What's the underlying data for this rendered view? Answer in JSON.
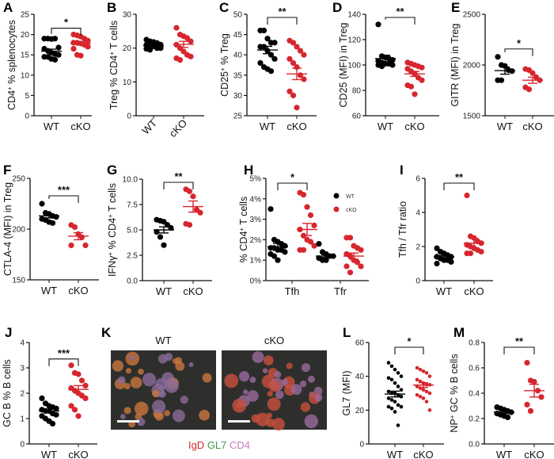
{
  "colors": {
    "WT": "#000000",
    "cKO": "#d7262e"
  },
  "chart_data": [
    {
      "panel": "A",
      "type": "scatter",
      "ylabel": [
        {
          "t": "CD4"
        },
        {
          "t": "+",
          "sup": true
        },
        {
          "t": " % splenocytes"
        }
      ],
      "ylim": [
        0,
        25
      ],
      "yticks": [
        0,
        5,
        10,
        15,
        20,
        25
      ],
      "categories": [
        "WT",
        "cKO"
      ],
      "series": [
        {
          "name": "WT",
          "x": "WT",
          "values": [
            19,
            19,
            18.9,
            19,
            16.8,
            16.5,
            16,
            15.5,
            15.2,
            15,
            14.5,
            14.5,
            14,
            13.8
          ],
          "mean": 15.9,
          "sem": 0.5
        },
        {
          "name": "cKO",
          "x": "cKO",
          "values": [
            20,
            19.8,
            19.5,
            19,
            18.5,
            18,
            18,
            17.8,
            17.5,
            17,
            16.5,
            15,
            14.8
          ],
          "mean": 17.8,
          "sem": 0.4
        }
      ],
      "significance": [
        {
          "from": "WT",
          "to": "cKO",
          "label": "*"
        }
      ]
    },
    {
      "panel": "B",
      "type": "scatter",
      "ylabel": [
        {
          "t": "Treg % CD4"
        },
        {
          "t": "+",
          "sup": true
        },
        {
          "t": " T cells"
        }
      ],
      "ylim": [
        0,
        30
      ],
      "yticks": [
        0,
        10,
        20,
        30
      ],
      "rotate_xticks": true,
      "categories": [
        "WT",
        "cKO"
      ],
      "series": [
        {
          "name": "WT",
          "x": "WT",
          "values": [
            22.5,
            22,
            21.8,
            21.5,
            21,
            21,
            20.5,
            20.5,
            20,
            20,
            19.8,
            19.5
          ],
          "mean": 20.6,
          "sem": 0.3
        },
        {
          "name": "cKO",
          "x": "cKO",
          "values": [
            26,
            24,
            23.5,
            23,
            22,
            21,
            20,
            19,
            18,
            17.5,
            17,
            16.5
          ],
          "mean": 21.1,
          "sem": 0.9
        }
      ],
      "significance": []
    },
    {
      "panel": "C",
      "type": "scatter",
      "ylabel": [
        {
          "t": "CD25"
        },
        {
          "t": "+",
          "sup": true
        },
        {
          "t": " % Treg"
        }
      ],
      "ylim": [
        25,
        50
      ],
      "yticks": [
        25,
        30,
        35,
        40,
        45,
        50
      ],
      "categories": [
        "WT",
        "cKO"
      ],
      "series": [
        {
          "name": "WT",
          "x": "WT",
          "values": [
            46,
            46,
            44,
            43,
            43,
            42,
            42,
            41,
            40,
            39,
            38,
            37,
            36.5,
            36
          ],
          "mean": 41.2,
          "sem": 0.9
        },
        {
          "name": "cKO",
          "x": "cKO",
          "values": [
            43.5,
            43,
            42,
            41,
            40,
            39,
            38,
            37,
            35,
            34,
            31,
            30,
            27
          ],
          "mean": 35.3,
          "sem": 1.4
        }
      ],
      "significance": [
        {
          "from": "WT",
          "to": "cKO",
          "label": "**"
        }
      ]
    },
    {
      "panel": "D",
      "type": "scatter",
      "ylabel": [
        {
          "t": "CD25 (MFI) in Treg"
        }
      ],
      "ylim": [
        60,
        140
      ],
      "yticks": [
        60,
        80,
        100,
        120,
        140
      ],
      "categories": [
        "WT",
        "cKO"
      ],
      "series": [
        {
          "name": "WT",
          "x": "WT",
          "values": [
            132,
            107,
            106,
            105,
            104,
            103,
            102,
            101,
            101,
            100,
            100,
            99
          ],
          "mean": 105,
          "sem": 2.7
        },
        {
          "name": "cKO",
          "x": "cKO",
          "values": [
            102,
            101,
            100,
            99,
            98,
            97,
            95,
            93,
            90,
            88,
            84,
            83,
            77
          ],
          "mean": 93,
          "sem": 2
        }
      ],
      "significance": [
        {
          "from": "WT",
          "to": "cKO",
          "label": "**"
        }
      ]
    },
    {
      "panel": "E",
      "type": "scatter",
      "ylabel": [
        {
          "t": "GITR (MFI) in Treg"
        }
      ],
      "ylim": [
        1500,
        2500
      ],
      "yticks": [
        1500,
        2000,
        2500
      ],
      "categories": [
        "WT",
        "cKO"
      ],
      "series": [
        {
          "name": "WT",
          "x": "WT",
          "values": [
            2080,
            2000,
            1990,
            1950,
            1940,
            1850,
            1850
          ],
          "mean": 1945,
          "sem": 35
        },
        {
          "name": "cKO",
          "x": "cKO",
          "values": [
            1960,
            1950,
            1920,
            1880,
            1850,
            1780,
            1760
          ],
          "mean": 1850,
          "sem": 30
        }
      ],
      "significance": [
        {
          "from": "WT",
          "to": "cKO",
          "label": "*"
        }
      ]
    },
    {
      "panel": "F",
      "type": "scatter",
      "ylabel": [
        {
          "t": "CTLA-4 (MFI) in Treg"
        }
      ],
      "ylim": [
        150,
        250
      ],
      "yticks": [
        150,
        200,
        250
      ],
      "categories": [
        "WT",
        "cKO"
      ],
      "series": [
        {
          "name": "WT",
          "x": "WT",
          "values": [
            225,
            216,
            215,
            213,
            212,
            210,
            209,
            207,
            206
          ],
          "mean": 213,
          "sem": 2
        },
        {
          "name": "cKO",
          "x": "cKO",
          "values": [
            204,
            202,
            195,
            192,
            184,
            184
          ],
          "mean": 193,
          "sem": 3.5
        }
      ],
      "significance": [
        {
          "from": "WT",
          "to": "cKO",
          "label": "***"
        }
      ]
    },
    {
      "panel": "G",
      "type": "scatter",
      "ylabel": [
        {
          "t": "IFNγ"
        },
        {
          "t": "+",
          "sup": true
        },
        {
          "t": " % CD4"
        },
        {
          "t": "+",
          "sup": true
        },
        {
          "t": " T cells"
        }
      ],
      "ylim": [
        0,
        10
      ],
      "yticks": [
        "0.0",
        "2.5",
        "5.0",
        "7.5",
        "10.0"
      ],
      "categories": [
        "WT",
        "cKO"
      ],
      "series": [
        {
          "name": "WT",
          "x": "WT",
          "values": [
            6,
            5.9,
            5.8,
            5.5,
            5.2,
            4.8,
            4.3,
            3.5
          ],
          "mean": 5.0,
          "sem": 0.3
        },
        {
          "name": "cKO",
          "x": "cKO",
          "values": [
            9,
            8.8,
            8.3,
            7,
            6.7,
            5.6,
            5.5
          ],
          "mean": 7.3,
          "sem": 0.55
        }
      ],
      "significance": [
        {
          "from": "WT",
          "to": "cKO",
          "label": "**"
        }
      ]
    },
    {
      "panel": "H",
      "type": "scatter",
      "ylabel": [
        {
          "t": "% CD4"
        },
        {
          "t": "+",
          "sup": true
        },
        {
          "t": " T cells"
        }
      ],
      "ylim": [
        0,
        5
      ],
      "yticks": [
        "0%",
        "1%",
        "2%",
        "3%",
        "4%",
        "5%"
      ],
      "categories": [
        "Tfh",
        "Tfr"
      ],
      "legend": [
        "WT",
        "cKO"
      ],
      "legend_position": "right",
      "series": [
        {
          "name": "WT",
          "x": "Tfh",
          "values": [
            3.5,
            2.0,
            1.9,
            1.8,
            1.7,
            1.6,
            1.6,
            1.5,
            1.5,
            1.4,
            1.3,
            1.2,
            1.0
          ],
          "mean": 1.65,
          "sem": 0.17
        },
        {
          "name": "cKO",
          "x": "Tfh",
          "values": [
            4.3,
            4.2,
            3.6,
            3.2,
            2.7,
            2.5,
            2.2,
            2.0,
            1.9,
            1.7,
            1.5,
            1.5
          ],
          "mean": 2.5,
          "sem": 0.3
        },
        {
          "name": "WT",
          "x": "Tfr",
          "values": [
            1.8,
            1.4,
            1.3,
            1.2,
            1.2,
            1.1,
            1.0,
            1.0
          ],
          "mean": 1.2,
          "sem": 0.07
        },
        {
          "name": "cKO",
          "x": "Tfr",
          "values": [
            2.1,
            2.1,
            1.7,
            1.6,
            1.5,
            1.3,
            1.2,
            1.0,
            0.9,
            0.7,
            0.7,
            0.4
          ],
          "mean": 1.2,
          "sem": 0.15
        }
      ],
      "significance": [
        {
          "from": "Tfh WT",
          "to": "Tfh cKO",
          "label": "*"
        }
      ]
    },
    {
      "panel": "I",
      "type": "scatter",
      "ylabel": [
        {
          "t": "Tfh / Tfr ratio"
        }
      ],
      "ylim": [
        0,
        6
      ],
      "yticks": [
        0,
        2,
        4,
        6
      ],
      "categories": [
        "WT",
        "cKO"
      ],
      "series": [
        {
          "name": "WT",
          "x": "WT",
          "values": [
            1.9,
            1.7,
            1.6,
            1.5,
            1.4,
            1.4,
            1.3,
            1.2,
            1.2,
            1.1,
            1.0
          ],
          "mean": 1.4,
          "sem": 0.08
        },
        {
          "name": "cKO",
          "x": "cKO",
          "values": [
            5.0,
            2.6,
            2.5,
            2.3,
            2.2,
            2.1,
            2.0,
            1.9,
            1.8,
            1.7,
            1.6,
            1.6
          ],
          "mean": 2.2,
          "sem": 0.27
        }
      ],
      "significance": [
        {
          "from": "WT",
          "to": "cKO",
          "label": "**"
        }
      ]
    },
    {
      "panel": "J",
      "type": "scatter",
      "ylabel": [
        {
          "t": "GC B % B cells"
        }
      ],
      "ylim": [
        0,
        4
      ],
      "yticks": [
        0,
        1,
        2,
        3,
        4
      ],
      "categories": [
        "WT",
        "cKO"
      ],
      "series": [
        {
          "name": "WT",
          "x": "WT",
          "values": [
            1.8,
            1.6,
            1.5,
            1.45,
            1.4,
            1.35,
            1.3,
            1.3,
            1.2,
            1.15,
            1.1,
            1.0,
            0.9,
            0.8
          ],
          "mean": 1.3,
          "sem": 0.07
        },
        {
          "name": "cKO",
          "x": "cKO",
          "values": [
            3.1,
            2.8,
            2.75,
            2.5,
            2.3,
            2.2,
            2.1,
            2.0,
            1.9,
            1.8,
            1.5,
            1.35,
            1.1
          ],
          "mean": 2.15,
          "sem": 0.15
        }
      ],
      "significance": [
        {
          "from": "WT",
          "to": "cKO",
          "label": "***"
        }
      ]
    },
    {
      "panel": "L",
      "type": "scatter",
      "ylabel": [
        {
          "t": "GL7 (MFI)"
        }
      ],
      "ylim": [
        0,
        60
      ],
      "yticks": [
        0,
        20,
        40,
        60
      ],
      "small_dots": true,
      "categories": [
        "WT",
        "cKO"
      ],
      "series": [
        {
          "name": "WT",
          "x": "WT",
          "values": [
            48,
            46,
            44,
            42,
            40,
            39,
            38,
            36,
            34,
            32,
            31,
            30,
            30,
            29,
            28,
            27,
            26,
            25,
            23,
            22,
            22,
            21,
            19,
            11
          ],
          "mean": 29.5,
          "sem": 1.7
        },
        {
          "name": "cKO",
          "x": "cKO",
          "values": [
            45,
            44,
            43,
            42,
            40,
            38,
            37,
            36,
            35,
            35,
            34,
            33,
            32,
            31,
            30,
            29,
            28,
            27,
            25,
            20
          ],
          "mean": 34.8,
          "sem": 1.4
        }
      ],
      "significance": [
        {
          "from": "WT",
          "to": "cKO",
          "label": "*"
        }
      ]
    },
    {
      "panel": "M",
      "type": "scatter",
      "ylabel": [
        {
          "t": "NP"
        },
        {
          "t": "+",
          "sup": true
        },
        {
          "t": " GC % B cells"
        }
      ],
      "ylim": [
        0,
        0.8
      ],
      "yticks": [
        "0.0",
        "0.2",
        "0.4",
        "0.6",
        "0.8"
      ],
      "categories": [
        "WT",
        "cKO"
      ],
      "series": [
        {
          "name": "WT",
          "x": "WT",
          "values": [
            0.29,
            0.28,
            0.27,
            0.26,
            0.25,
            0.24,
            0.23,
            0.22,
            0.21
          ],
          "mean": 0.25,
          "sem": 0.01
        },
        {
          "name": "cKO",
          "x": "cKO",
          "values": [
            0.64,
            0.5,
            0.49,
            0.42,
            0.37,
            0.31,
            0.26
          ],
          "mean": 0.42,
          "sem": 0.05
        }
      ],
      "significance": [
        {
          "from": "WT",
          "to": "cKO",
          "label": "**"
        }
      ]
    }
  ],
  "panel_k": {
    "label": "K",
    "images": [
      {
        "title": "WT"
      },
      {
        "title": "cKO"
      }
    ],
    "stain_legend": [
      {
        "t": "IgD",
        "color": "#d7262e"
      },
      {
        "t": " GL7",
        "color": "#3a9a4a"
      },
      {
        "t": " CD4",
        "color": "#c77bc0"
      }
    ]
  }
}
